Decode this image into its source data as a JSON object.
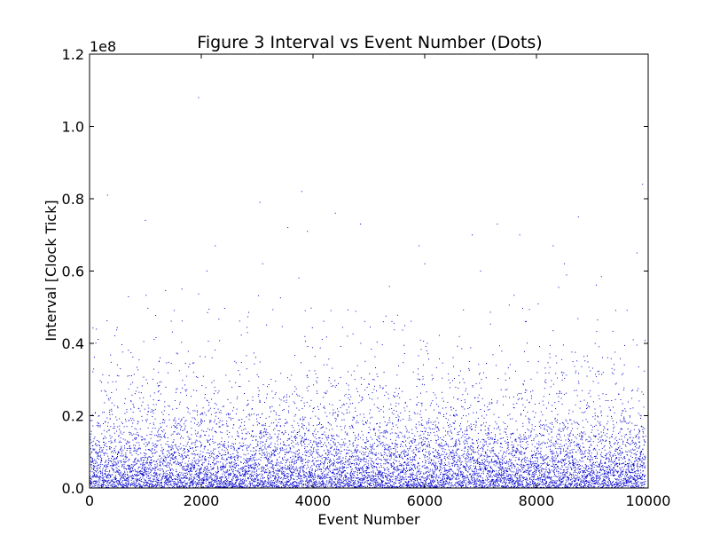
{
  "chart_data": {
    "type": "scatter",
    "title": "Figure 3 Interval vs Event Number (Dots)",
    "xlabel": "Event Number",
    "ylabel": "Interval [Clock Tick]",
    "y_offset_label": "1e8",
    "xlim": [
      0,
      10000
    ],
    "ylim": [
      0,
      1.2
    ],
    "y_scale_factor": 100000000,
    "x_ticks": [
      0,
      2000,
      4000,
      6000,
      8000,
      10000
    ],
    "x_tick_labels": [
      "0",
      "2000",
      "4000",
      "6000",
      "8000",
      "10000"
    ],
    "y_ticks": [
      0,
      0.2,
      0.4,
      0.6,
      0.8,
      1.0,
      1.2
    ],
    "y_tick_labels": [
      "0.0",
      "0.2",
      "0.4",
      "0.6",
      "0.8",
      "1.0",
      "1.2"
    ],
    "grid": false,
    "legend": "none",
    "marker_color": "#0000cc",
    "marker": "dot",
    "series": [
      {
        "x_range": [
          0,
          9950
        ],
        "point_count": 10000,
        "distribution": "exponential-like, dense near 0, sparse above 0.4e8",
        "notable_points": [
          {
            "x": 1950,
            "y": 1.08
          },
          {
            "x": 3800,
            "y": 0.82
          },
          {
            "x": 320,
            "y": 0.81
          },
          {
            "x": 9900,
            "y": 0.84
          },
          {
            "x": 3050,
            "y": 0.79
          },
          {
            "x": 4400,
            "y": 0.76
          },
          {
            "x": 8750,
            "y": 0.75
          },
          {
            "x": 1000,
            "y": 0.74
          },
          {
            "x": 7300,
            "y": 0.73
          },
          {
            "x": 4850,
            "y": 0.73
          },
          {
            "x": 3550,
            "y": 0.72
          },
          {
            "x": 3900,
            "y": 0.71
          },
          {
            "x": 6850,
            "y": 0.7
          },
          {
            "x": 7700,
            "y": 0.7
          },
          {
            "x": 2250,
            "y": 0.67
          },
          {
            "x": 8300,
            "y": 0.67
          },
          {
            "x": 5900,
            "y": 0.67
          },
          {
            "x": 9800,
            "y": 0.65
          },
          {
            "x": 3100,
            "y": 0.62
          },
          {
            "x": 6000,
            "y": 0.62
          },
          {
            "x": 8500,
            "y": 0.62
          },
          {
            "x": 2100,
            "y": 0.6
          },
          {
            "x": 7000,
            "y": 0.6
          }
        ]
      }
    ]
  }
}
